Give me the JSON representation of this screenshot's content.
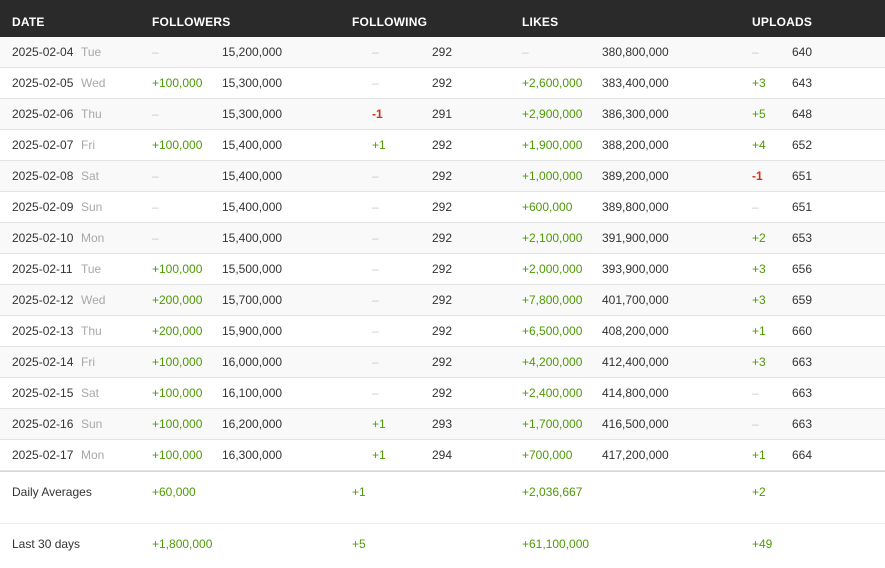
{
  "headers": {
    "date": "DATE",
    "followers": "FOLLOWERS",
    "following": "FOLLOWING",
    "likes": "LIKES",
    "uploads": "UPLOADS"
  },
  "rows": [
    {
      "date": "2025-02-04",
      "dow": "Tue",
      "followers_delta": "–",
      "followers": "15,200,000",
      "following_delta": "–",
      "following": "292",
      "likes_delta": "–",
      "likes": "380,800,000",
      "uploads_delta": "–",
      "uploads": "640"
    },
    {
      "date": "2025-02-05",
      "dow": "Wed",
      "followers_delta": "+100,000",
      "followers": "15,300,000",
      "following_delta": "–",
      "following": "292",
      "likes_delta": "+2,600,000",
      "likes": "383,400,000",
      "uploads_delta": "+3",
      "uploads": "643"
    },
    {
      "date": "2025-02-06",
      "dow": "Thu",
      "followers_delta": "–",
      "followers": "15,300,000",
      "following_delta": "-1",
      "following": "291",
      "likes_delta": "+2,900,000",
      "likes": "386,300,000",
      "uploads_delta": "+5",
      "uploads": "648"
    },
    {
      "date": "2025-02-07",
      "dow": "Fri",
      "followers_delta": "+100,000",
      "followers": "15,400,000",
      "following_delta": "+1",
      "following": "292",
      "likes_delta": "+1,900,000",
      "likes": "388,200,000",
      "uploads_delta": "+4",
      "uploads": "652"
    },
    {
      "date": "2025-02-08",
      "dow": "Sat",
      "followers_delta": "–",
      "followers": "15,400,000",
      "following_delta": "–",
      "following": "292",
      "likes_delta": "+1,000,000",
      "likes": "389,200,000",
      "uploads_delta": "-1",
      "uploads": "651"
    },
    {
      "date": "2025-02-09",
      "dow": "Sun",
      "followers_delta": "–",
      "followers": "15,400,000",
      "following_delta": "–",
      "following": "292",
      "likes_delta": "+600,000",
      "likes": "389,800,000",
      "uploads_delta": "–",
      "uploads": "651"
    },
    {
      "date": "2025-02-10",
      "dow": "Mon",
      "followers_delta": "–",
      "followers": "15,400,000",
      "following_delta": "–",
      "following": "292",
      "likes_delta": "+2,100,000",
      "likes": "391,900,000",
      "uploads_delta": "+2",
      "uploads": "653"
    },
    {
      "date": "2025-02-11",
      "dow": "Tue",
      "followers_delta": "+100,000",
      "followers": "15,500,000",
      "following_delta": "–",
      "following": "292",
      "likes_delta": "+2,000,000",
      "likes": "393,900,000",
      "uploads_delta": "+3",
      "uploads": "656"
    },
    {
      "date": "2025-02-12",
      "dow": "Wed",
      "followers_delta": "+200,000",
      "followers": "15,700,000",
      "following_delta": "–",
      "following": "292",
      "likes_delta": "+7,800,000",
      "likes": "401,700,000",
      "uploads_delta": "+3",
      "uploads": "659"
    },
    {
      "date": "2025-02-13",
      "dow": "Thu",
      "followers_delta": "+200,000",
      "followers": "15,900,000",
      "following_delta": "–",
      "following": "292",
      "likes_delta": "+6,500,000",
      "likes": "408,200,000",
      "uploads_delta": "+1",
      "uploads": "660"
    },
    {
      "date": "2025-02-14",
      "dow": "Fri",
      "followers_delta": "+100,000",
      "followers": "16,000,000",
      "following_delta": "–",
      "following": "292",
      "likes_delta": "+4,200,000",
      "likes": "412,400,000",
      "uploads_delta": "+3",
      "uploads": "663"
    },
    {
      "date": "2025-02-15",
      "dow": "Sat",
      "followers_delta": "+100,000",
      "followers": "16,100,000",
      "following_delta": "–",
      "following": "292",
      "likes_delta": "+2,400,000",
      "likes": "414,800,000",
      "uploads_delta": "–",
      "uploads": "663"
    },
    {
      "date": "2025-02-16",
      "dow": "Sun",
      "followers_delta": "+100,000",
      "followers": "16,200,000",
      "following_delta": "+1",
      "following": "293",
      "likes_delta": "+1,700,000",
      "likes": "416,500,000",
      "uploads_delta": "–",
      "uploads": "663"
    },
    {
      "date": "2025-02-17",
      "dow": "Mon",
      "followers_delta": "+100,000",
      "followers": "16,300,000",
      "following_delta": "+1",
      "following": "294",
      "likes_delta": "+700,000",
      "likes": "417,200,000",
      "uploads_delta": "+1",
      "uploads": "664"
    }
  ],
  "daily_averages": {
    "label": "Daily Averages",
    "followers": "+60,000",
    "following": "+1",
    "likes": "+2,036,667",
    "uploads": "+2"
  },
  "last_30_days": {
    "label": "Last 30 days",
    "followers": "+1,800,000",
    "following": "+5",
    "likes": "+61,100,000",
    "uploads": "+49"
  },
  "colors": {
    "header_bg": "#2a2a2a",
    "positive": "#4e9a06",
    "negative": "#d12e1d",
    "neutral": "#c8c8c8"
  }
}
